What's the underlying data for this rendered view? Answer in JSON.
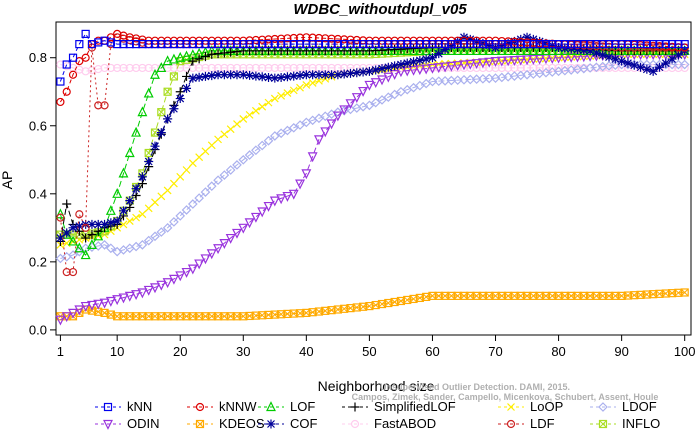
{
  "chart_data": {
    "type": "line",
    "title": "WDBC_withoutdupl_v05",
    "xlabel": "Neighborhood size",
    "ylabel": "AP",
    "xlim": [
      1,
      100
    ],
    "ylim": [
      0,
      0.9
    ],
    "xticks": [
      1,
      10,
      20,
      30,
      40,
      50,
      60,
      70,
      80,
      90,
      100
    ],
    "yticks": [
      0.0,
      0.2,
      0.4,
      0.6,
      0.8
    ],
    "ytick_labels": [
      "0.0",
      "0.2",
      "0.4",
      "0.6",
      "0.8"
    ],
    "grid": false,
    "legend_position": "bottom",
    "watermark": "Campos, Zimek, Sander, Campello, Micenkova, Schubert, Assent, Houle",
    "watermark_line1": "Unsupervised Outlier Detection. DAMI, 2015.",
    "series": [
      {
        "name": "kNN",
        "color": "#0000ee",
        "marker": "square",
        "dash": "4,3",
        "points": [
          [
            1,
            0.73
          ],
          [
            2,
            0.78
          ],
          [
            3,
            0.8
          ],
          [
            4,
            0.84
          ],
          [
            5,
            0.87
          ],
          [
            6,
            0.84
          ],
          [
            8,
            0.85
          ],
          [
            10,
            0.84
          ],
          [
            15,
            0.84
          ],
          [
            20,
            0.84
          ],
          [
            30,
            0.84
          ],
          [
            40,
            0.84
          ],
          [
            50,
            0.84
          ],
          [
            60,
            0.84
          ],
          [
            70,
            0.84
          ],
          [
            80,
            0.84
          ],
          [
            90,
            0.84
          ],
          [
            100,
            0.84
          ]
        ]
      },
      {
        "name": "kNNW",
        "color": "#dd0000",
        "marker": "circle",
        "dash": "4,3",
        "points": [
          [
            1,
            0.67
          ],
          [
            2,
            0.7
          ],
          [
            3,
            0.75
          ],
          [
            4,
            0.79
          ],
          [
            5,
            0.8
          ],
          [
            6,
            0.84
          ],
          [
            7,
            0.85
          ],
          [
            8,
            0.85
          ],
          [
            10,
            0.87
          ],
          [
            12,
            0.86
          ],
          [
            15,
            0.85
          ],
          [
            20,
            0.85
          ],
          [
            30,
            0.85
          ],
          [
            40,
            0.86
          ],
          [
            50,
            0.85
          ],
          [
            60,
            0.85
          ],
          [
            70,
            0.85
          ],
          [
            80,
            0.84
          ],
          [
            90,
            0.84
          ],
          [
            100,
            0.83
          ]
        ]
      },
      {
        "name": "LOF",
        "color": "#00cc00",
        "marker": "triangle-up",
        "dash": "6,3",
        "points": [
          [
            1,
            0.34
          ],
          [
            2,
            0.28
          ],
          [
            3,
            0.26
          ],
          [
            4,
            0.24
          ],
          [
            5,
            0.22
          ],
          [
            6,
            0.25
          ],
          [
            8,
            0.3
          ],
          [
            10,
            0.4
          ],
          [
            12,
            0.52
          ],
          [
            14,
            0.64
          ],
          [
            16,
            0.75
          ],
          [
            18,
            0.79
          ],
          [
            20,
            0.8
          ],
          [
            25,
            0.82
          ],
          [
            30,
            0.82
          ],
          [
            40,
            0.82
          ],
          [
            50,
            0.82
          ],
          [
            60,
            0.82
          ],
          [
            70,
            0.82
          ],
          [
            80,
            0.82
          ],
          [
            90,
            0.82
          ],
          [
            100,
            0.82
          ]
        ]
      },
      {
        "name": "SimplifiedLOF",
        "color": "#000000",
        "marker": "plus",
        "dash": "6,3",
        "points": [
          [
            1,
            0.26
          ],
          [
            2,
            0.37
          ],
          [
            3,
            0.31
          ],
          [
            4,
            0.29
          ],
          [
            5,
            0.27
          ],
          [
            6,
            0.28
          ],
          [
            8,
            0.3
          ],
          [
            10,
            0.31
          ],
          [
            12,
            0.36
          ],
          [
            14,
            0.43
          ],
          [
            16,
            0.53
          ],
          [
            18,
            0.62
          ],
          [
            20,
            0.7
          ],
          [
            22,
            0.79
          ],
          [
            25,
            0.81
          ],
          [
            30,
            0.82
          ],
          [
            40,
            0.82
          ],
          [
            50,
            0.82
          ],
          [
            60,
            0.83
          ],
          [
            70,
            0.83
          ],
          [
            80,
            0.83
          ],
          [
            90,
            0.82
          ],
          [
            100,
            0.82
          ]
        ]
      },
      {
        "name": "LoOP",
        "color": "#ffee00",
        "marker": "x",
        "dash": "6,3",
        "points": [
          [
            1,
            0.25
          ],
          [
            3,
            0.26
          ],
          [
            5,
            0.27
          ],
          [
            8,
            0.28
          ],
          [
            10,
            0.3
          ],
          [
            14,
            0.34
          ],
          [
            18,
            0.41
          ],
          [
            22,
            0.49
          ],
          [
            26,
            0.56
          ],
          [
            30,
            0.62
          ],
          [
            35,
            0.68
          ],
          [
            40,
            0.72
          ],
          [
            45,
            0.75
          ],
          [
            50,
            0.76
          ],
          [
            60,
            0.78
          ],
          [
            70,
            0.79
          ],
          [
            80,
            0.8
          ],
          [
            90,
            0.81
          ],
          [
            100,
            0.81
          ]
        ]
      },
      {
        "name": "LDOF",
        "color": "#aab0ee",
        "marker": "diamond",
        "dash": "6,3",
        "points": [
          [
            1,
            0.21
          ],
          [
            3,
            0.22
          ],
          [
            5,
            0.24
          ],
          [
            8,
            0.25
          ],
          [
            10,
            0.23
          ],
          [
            14,
            0.25
          ],
          [
            18,
            0.3
          ],
          [
            22,
            0.37
          ],
          [
            26,
            0.44
          ],
          [
            30,
            0.5
          ],
          [
            35,
            0.57
          ],
          [
            40,
            0.61
          ],
          [
            45,
            0.64
          ],
          [
            50,
            0.66
          ],
          [
            55,
            0.7
          ],
          [
            60,
            0.73
          ],
          [
            70,
            0.74
          ],
          [
            80,
            0.76
          ],
          [
            90,
            0.78
          ],
          [
            100,
            0.78
          ]
        ]
      },
      {
        "name": "ODIN",
        "color": "#9933dd",
        "marker": "triangle-down",
        "dash": "6,3",
        "points": [
          [
            1,
            0.03
          ],
          [
            3,
            0.05
          ],
          [
            5,
            0.07
          ],
          [
            8,
            0.08
          ],
          [
            10,
            0.09
          ],
          [
            14,
            0.11
          ],
          [
            18,
            0.14
          ],
          [
            22,
            0.18
          ],
          [
            26,
            0.24
          ],
          [
            30,
            0.3
          ],
          [
            35,
            0.38
          ],
          [
            38,
            0.4
          ],
          [
            40,
            0.46
          ],
          [
            42,
            0.56
          ],
          [
            45,
            0.63
          ],
          [
            50,
            0.72
          ],
          [
            55,
            0.76
          ],
          [
            60,
            0.77
          ],
          [
            65,
            0.78
          ],
          [
            70,
            0.79
          ],
          [
            80,
            0.8
          ],
          [
            90,
            0.81
          ],
          [
            100,
            0.81
          ]
        ]
      },
      {
        "name": "KDEOS",
        "color": "#ffaa00",
        "marker": "square-x",
        "dash": "6,3",
        "points": [
          [
            1,
            0.04
          ],
          [
            3,
            0.04
          ],
          [
            5,
            0.06
          ],
          [
            8,
            0.05
          ],
          [
            10,
            0.04
          ],
          [
            15,
            0.04
          ],
          [
            20,
            0.04
          ],
          [
            30,
            0.04
          ],
          [
            40,
            0.05
          ],
          [
            50,
            0.07
          ],
          [
            60,
            0.1
          ],
          [
            65,
            0.1
          ],
          [
            70,
            0.1
          ],
          [
            80,
            0.1
          ],
          [
            90,
            0.1
          ],
          [
            100,
            0.11
          ]
        ]
      },
      {
        "name": "COF",
        "color": "#000099",
        "marker": "asterisk",
        "dash": "6,3",
        "points": [
          [
            1,
            0.27
          ],
          [
            3,
            0.3
          ],
          [
            5,
            0.31
          ],
          [
            8,
            0.31
          ],
          [
            10,
            0.32
          ],
          [
            12,
            0.38
          ],
          [
            14,
            0.45
          ],
          [
            16,
            0.54
          ],
          [
            18,
            0.62
          ],
          [
            20,
            0.68
          ],
          [
            22,
            0.74
          ],
          [
            26,
            0.75
          ],
          [
            30,
            0.75
          ],
          [
            35,
            0.74
          ],
          [
            40,
            0.75
          ],
          [
            45,
            0.75
          ],
          [
            50,
            0.76
          ],
          [
            55,
            0.78
          ],
          [
            60,
            0.8
          ],
          [
            65,
            0.86
          ],
          [
            70,
            0.83
          ],
          [
            75,
            0.86
          ],
          [
            80,
            0.83
          ],
          [
            85,
            0.82
          ],
          [
            90,
            0.79
          ],
          [
            95,
            0.76
          ],
          [
            100,
            0.82
          ]
        ]
      },
      {
        "name": "FastABOD",
        "color": "#ffccee",
        "marker": "circle",
        "dash": "6,3",
        "points": [
          [
            1,
            0.78
          ],
          [
            3,
            0.77
          ],
          [
            5,
            0.76
          ],
          [
            8,
            0.77
          ],
          [
            10,
            0.77
          ],
          [
            15,
            0.77
          ],
          [
            20,
            0.77
          ],
          [
            30,
            0.77
          ],
          [
            40,
            0.77
          ],
          [
            50,
            0.77
          ],
          [
            60,
            0.77
          ],
          [
            70,
            0.77
          ],
          [
            80,
            0.77
          ],
          [
            90,
            0.77
          ],
          [
            100,
            0.77
          ]
        ]
      },
      {
        "name": "LDF",
        "color": "#cc2222",
        "marker": "circle",
        "dash": "2,3",
        "points": [
          [
            1,
            0.33
          ],
          [
            2,
            0.17
          ],
          [
            3,
            0.17
          ],
          [
            4,
            0.34
          ],
          [
            5,
            0.3
          ],
          [
            6,
            0.83
          ],
          [
            7,
            0.66
          ],
          [
            8,
            0.66
          ],
          [
            9,
            0.84
          ],
          [
            10,
            0.86
          ],
          [
            15,
            0.84
          ],
          [
            20,
            0.84
          ],
          [
            30,
            0.84
          ],
          [
            40,
            0.84
          ],
          [
            50,
            0.84
          ],
          [
            60,
            0.84
          ],
          [
            70,
            0.84
          ],
          [
            80,
            0.84
          ],
          [
            90,
            0.83
          ],
          [
            100,
            0.83
          ]
        ]
      },
      {
        "name": "INFLO",
        "color": "#aadd22",
        "marker": "square-x",
        "dash": "6,3",
        "points": [
          [
            1,
            0.28
          ],
          [
            3,
            0.28
          ],
          [
            5,
            0.28
          ],
          [
            8,
            0.29
          ],
          [
            10,
            0.32
          ],
          [
            12,
            0.38
          ],
          [
            14,
            0.46
          ],
          [
            16,
            0.58
          ],
          [
            18,
            0.7
          ],
          [
            20,
            0.79
          ],
          [
            25,
            0.81
          ],
          [
            30,
            0.81
          ],
          [
            40,
            0.81
          ],
          [
            50,
            0.81
          ],
          [
            60,
            0.82
          ],
          [
            70,
            0.82
          ],
          [
            80,
            0.82
          ],
          [
            90,
            0.82
          ],
          [
            100,
            0.82
          ]
        ]
      }
    ],
    "legend": [
      [
        "kNN",
        "kNNW",
        "LOF",
        "SimplifiedLOF",
        "LoOP",
        "LDOF"
      ],
      [
        "ODIN",
        "KDEOS",
        "COF",
        "FastABOD",
        "LDF",
        "INFLO"
      ]
    ]
  }
}
